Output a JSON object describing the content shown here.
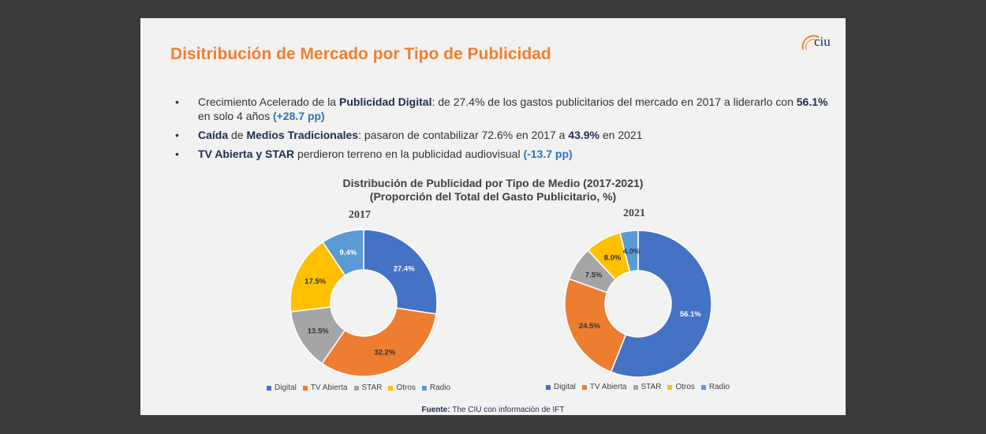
{
  "slide": {
    "title": "Disitribución de Mercado por Tipo de Publicidad",
    "logo_text": "ciu"
  },
  "bullets": [
    {
      "parts": [
        {
          "t": "Crecimiento Acelerado de la ",
          "s": "n"
        },
        {
          "t": "Publicidad Digital",
          "s": "b"
        },
        {
          "t": ": de 27.4% de los gastos publicitarios del mercado en 2017 a liderarlo con ",
          "s": "n"
        },
        {
          "t": "56.1%",
          "s": "b"
        },
        {
          "t": " en solo 4 años ",
          "s": "n"
        },
        {
          "t": "(+28.7 pp)",
          "s": "blue"
        }
      ]
    },
    {
      "parts": [
        {
          "t": "Caída",
          "s": "b"
        },
        {
          "t": " de ",
          "s": "n"
        },
        {
          "t": "Medios Tradicionales",
          "s": "b"
        },
        {
          "t": ": pasaron de contabilizar 72.6% en 2017 a ",
          "s": "n"
        },
        {
          "t": "43.9%",
          "s": "b"
        },
        {
          "t": " en 2021",
          "s": "n"
        }
      ]
    },
    {
      "parts": [
        {
          "t": "TV Abierta y STAR",
          "s": "b"
        },
        {
          "t": " perdieron terreno en la publicidad audiovisual ",
          "s": "n"
        },
        {
          "t": "(-13.7 pp)",
          "s": "blue"
        }
      ]
    }
  ],
  "source": {
    "label": "Fuente:",
    "text": " The CIU con información de IFT"
  },
  "chart_data": [
    {
      "type": "pie",
      "title": "Distribución de Publicidad por Tipo de Medio (2017-2021)",
      "subtitle": "(Proporción del Total del Gasto Publicitario, %)",
      "year": "2017",
      "categories": [
        "Digital",
        "TV Abierta",
        "STAR",
        "Otros",
        "Radio"
      ],
      "values": [
        27.4,
        32.2,
        13.5,
        17.5,
        9.4
      ],
      "labels": [
        "27.4%",
        "32.2%",
        "13.5%",
        "17.5%",
        "9.4%"
      ],
      "colors": [
        "#4472c4",
        "#ed7d31",
        "#a5a5a5",
        "#ffc000",
        "#5b9bd5"
      ],
      "legend": "bottom"
    },
    {
      "type": "pie",
      "year": "2021",
      "categories": [
        "Digital",
        "TV Abierta",
        "STAR",
        "Otros",
        "Radio"
      ],
      "values": [
        56.1,
        24.5,
        7.5,
        8.0,
        4.0
      ],
      "labels": [
        "56.1%",
        "24.5%",
        "7.5%",
        "8.0%",
        "4.0%"
      ],
      "colors": [
        "#4472c4",
        "#ed7d31",
        "#a5a5a5",
        "#ffc000",
        "#5b9bd5"
      ],
      "legend": "bottom"
    }
  ]
}
